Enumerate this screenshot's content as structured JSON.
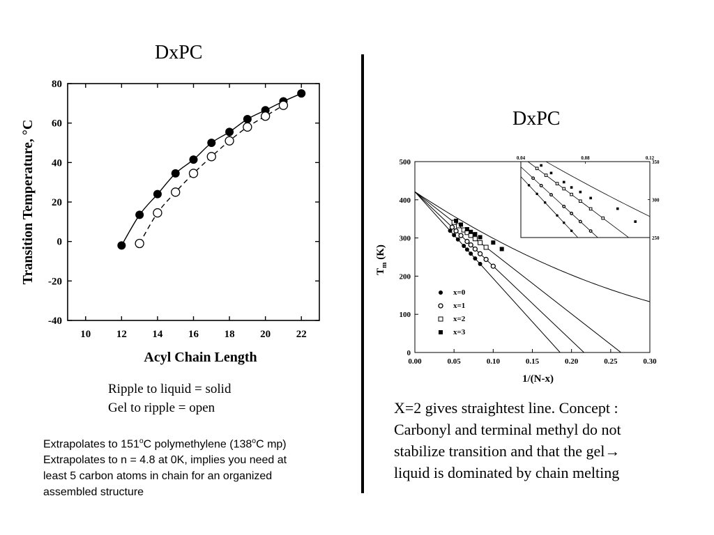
{
  "left": {
    "title": "DxPC",
    "caption_line1": "Ripple to liquid = solid",
    "caption_line2": "Gel to ripple = open",
    "note_line1_a": "Extrapolates to 151",
    "note_line1_sup1": "o",
    "note_line1_b": "C polymethylene (138",
    "note_line1_sup2": "o",
    "note_line1_c": "C mp)",
    "note_line2": "Extrapolates to  n = 4.8 at 0K, implies you need at",
    "note_line3": "least 5 carbon atoms in chain for an organized",
    "note_line4": "assembled structure"
  },
  "right": {
    "title": "DxPC",
    "text_line1": "X=2 gives straightest line. Concept :",
    "text_line2": "Carbonyl and terminal methyl do not",
    "text_line3": "stabilize transition and that the gel→",
    "text_line4": "liquid is dominated by chain melting"
  },
  "chart_data": [
    {
      "type": "line",
      "xlabel": "Acyl Chain Length",
      "ylabel": "Transition Temperature, °C",
      "xlim": [
        9,
        23
      ],
      "ylim": [
        -40,
        80
      ],
      "xticks": [
        "10",
        "12",
        "14",
        "16",
        "18",
        "20",
        "22"
      ],
      "yticks": [
        "-40",
        "-20",
        "0",
        "20",
        "40",
        "60",
        "80"
      ],
      "series": [
        {
          "marker": "filled-circle",
          "line": "solid",
          "x": [
            12,
            13,
            14,
            15,
            16,
            17,
            18,
            19,
            20,
            21,
            22
          ],
          "y": [
            -2,
            13.5,
            24,
            34.5,
            41.5,
            50,
            55.5,
            62,
            66.5,
            71,
            75
          ]
        },
        {
          "marker": "open-circle",
          "line": "dashed",
          "x": [
            13,
            14,
            15,
            16,
            17,
            18,
            19,
            20,
            21
          ],
          "y": [
            -1,
            14.5,
            25,
            34.5,
            43,
            51,
            58,
            63.5,
            69
          ]
        }
      ]
    },
    {
      "type": "scatter",
      "xlabel": "1/(N-x)",
      "ylabel": "T",
      "ylabel_sub": "m",
      "ylabel_unit": " (K)",
      "xlim": [
        0,
        0.3
      ],
      "ylim": [
        0,
        500
      ],
      "xticks": [
        "0.00",
        "0.05",
        "0.10",
        "0.15",
        "0.20",
        "0.25",
        "0.30"
      ],
      "yticks": [
        "0",
        "100",
        "200",
        "300",
        "400",
        "500"
      ],
      "legend": [
        "x=0",
        "x=1",
        "x=2",
        "x=3"
      ],
      "legend_position": "lower-left",
      "intercept": 421,
      "series": [
        {
          "name": "x=0",
          "marker": "filled-circle",
          "slope": -2270,
          "x": [
            0.045,
            0.05,
            0.055,
            0.0625,
            0.0667,
            0.0714,
            0.0769,
            0.0833
          ]
        },
        {
          "name": "x=1",
          "marker": "open-circle",
          "slope": -1950,
          "x": [
            0.0476,
            0.0526,
            0.0588,
            0.0667,
            0.0714,
            0.0769,
            0.0833,
            0.0909,
            0.1
          ]
        },
        {
          "name": "x=2",
          "marker": "open-square",
          "slope": -1600,
          "x": [
            0.05,
            0.0556,
            0.0625,
            0.0667,
            0.0714,
            0.0769,
            0.0833,
            0.0909
          ]
        },
        {
          "name": "x=3",
          "marker": "filled-square",
          "curve": "concave",
          "x": [
            0.0526,
            0.0588,
            0.0667,
            0.0714,
            0.0769,
            0.0833,
            0.1,
            0.111
          ],
          "y": [
            345,
            335,
            323,
            316,
            310,
            302,
            288,
            271
          ]
        }
      ],
      "inset": {
        "xlim": [
          0.04,
          0.12
        ],
        "ylim": [
          250,
          350
        ],
        "xticks": [
          "0.04",
          "0.08",
          "0.12"
        ],
        "yticks": [
          "250",
          "300",
          "350"
        ]
      }
    }
  ]
}
